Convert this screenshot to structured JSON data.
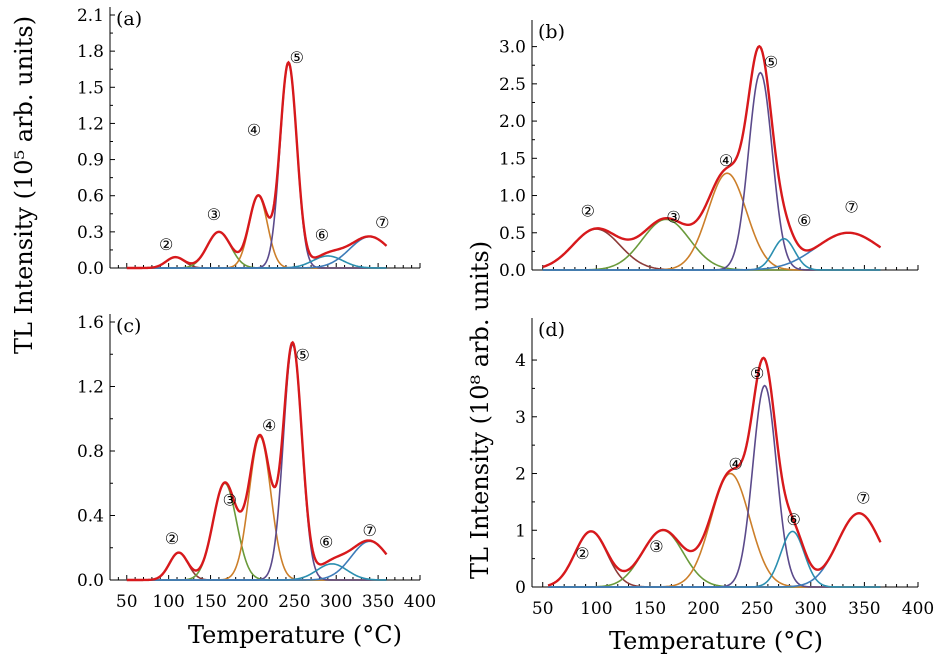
{
  "figure": {
    "x_axis_title": "Temperature (°C)",
    "y_axis_title_top": "TL Intensity (10⁵ arb. units)",
    "y_axis_title_bottom": "TL Intensity (10⁸ arb. units)",
    "colors": {
      "total": "#d7191c",
      "peak2": "#8c3b38",
      "peak3": "#6a9a3a",
      "peak4": "#cc7f2a",
      "peak5": "#5b4a8b",
      "peak6": "#2b8fb0",
      "peak7": "#3d7bb8"
    }
  },
  "chart_data": [
    {
      "id": "a",
      "type": "line",
      "panel_label": "(a)",
      "xlabel": "",
      "ylabel": "TL Intensity (10⁵ arb. units)",
      "xlim": [
        30,
        400
      ],
      "ylim": [
        0,
        2.1
      ],
      "x_ticks": [],
      "y_ticks": [
        "0.0",
        "0.3",
        "0.6",
        "0.9",
        "1.2",
        "1.5",
        "1.8",
        "2.1"
      ],
      "x_range": [
        50,
        360
      ],
      "peaks": [
        {
          "label": "②",
          "center": 108,
          "height": 0.09,
          "width": 11,
          "color_key": "peak2",
          "label_x": 97,
          "label_y": 0.2
        },
        {
          "label": "③",
          "center": 160,
          "height": 0.3,
          "width": 14,
          "color_key": "peak3",
          "label_x": 154,
          "label_y": 0.45
        },
        {
          "label": "④",
          "center": 207,
          "height": 0.6,
          "width": 11,
          "color_key": "peak4",
          "label_x": 202,
          "label_y": 1.15
        },
        {
          "label": "⑤",
          "center": 243,
          "height": 1.7,
          "width": 10,
          "color_key": "peak5",
          "label_x": 253,
          "label_y": 1.75
        },
        {
          "label": "⑥",
          "center": 290,
          "height": 0.1,
          "width": 18,
          "color_key": "peak6",
          "label_x": 283,
          "label_y": 0.28
        },
        {
          "label": "⑦",
          "center": 340,
          "height": 0.26,
          "width": 24,
          "color_key": "peak7",
          "label_x": 355,
          "label_y": 0.38
        }
      ]
    },
    {
      "id": "b",
      "type": "line",
      "panel_label": "(b)",
      "xlabel": "",
      "ylabel": "",
      "xlim": [
        40,
        400
      ],
      "ylim": [
        0,
        3.25
      ],
      "x_ticks": [],
      "y_ticks": [
        "0.0",
        "0.5",
        "1.0",
        "1.5",
        "2.0",
        "2.5",
        "3.0"
      ],
      "x_range": [
        50,
        365
      ],
      "peaks": [
        {
          "label": "②",
          "center": 100,
          "height": 0.55,
          "width": 22,
          "color_key": "peak2",
          "label_x": 92,
          "label_y": 0.8
        },
        {
          "label": "③",
          "center": 165,
          "height": 0.68,
          "width": 22,
          "color_key": "peak3",
          "label_x": 172,
          "label_y": 0.72
        },
        {
          "label": "④",
          "center": 222,
          "height": 1.3,
          "width": 18,
          "color_key": "peak4",
          "label_x": 221,
          "label_y": 1.48
        },
        {
          "label": "⑤",
          "center": 253,
          "height": 2.65,
          "width": 11,
          "color_key": "peak5",
          "label_x": 263,
          "label_y": 2.8
        },
        {
          "label": "⑥",
          "center": 275,
          "height": 0.42,
          "width": 10,
          "color_key": "peak6",
          "label_x": 294,
          "label_y": 0.67
        },
        {
          "label": "⑦",
          "center": 335,
          "height": 0.5,
          "width": 30,
          "color_key": "peak7",
          "label_x": 338,
          "label_y": 0.85
        }
      ]
    },
    {
      "id": "c",
      "type": "line",
      "panel_label": "(c)",
      "xlabel": "Temperature (°C)",
      "ylabel": "",
      "xlim": [
        30,
        400
      ],
      "ylim": [
        0,
        1.6
      ],
      "x_ticks": [
        "50",
        "100",
        "150",
        "200",
        "250",
        "300",
        "350",
        "400"
      ],
      "y_ticks": [
        "0.0",
        "0.4",
        "0.8",
        "1.2",
        "1.6"
      ],
      "x_range": [
        50,
        360
      ],
      "peaks": [
        {
          "label": "②",
          "center": 112,
          "height": 0.17,
          "width": 11,
          "color_key": "peak2",
          "label_x": 104,
          "label_y": 0.26
        },
        {
          "label": "③",
          "center": 167,
          "height": 0.6,
          "width": 14,
          "color_key": "peak3",
          "label_x": 173,
          "label_y": 0.5
        },
        {
          "label": "④",
          "center": 209,
          "height": 0.89,
          "width": 13,
          "color_key": "peak4",
          "label_x": 220,
          "label_y": 0.96
        },
        {
          "label": "⑤",
          "center": 248,
          "height": 1.46,
          "width": 11,
          "color_key": "peak5",
          "label_x": 260,
          "label_y": 1.4
        },
        {
          "label": "⑥",
          "center": 295,
          "height": 0.1,
          "width": 18,
          "color_key": "peak6",
          "label_x": 288,
          "label_y": 0.24
        },
        {
          "label": "⑦",
          "center": 340,
          "height": 0.24,
          "width": 22,
          "color_key": "peak7",
          "label_x": 340,
          "label_y": 0.31
        }
      ]
    },
    {
      "id": "d",
      "type": "line",
      "panel_label": "(d)",
      "xlabel": "Temperature (°C)",
      "ylabel": "TL Intensity (10⁸ arb. units)",
      "xlim": [
        40,
        400
      ],
      "ylim": [
        0,
        4.6
      ],
      "x_ticks": [
        "50",
        "100",
        "150",
        "200",
        "250",
        "300",
        "350",
        "400"
      ],
      "y_ticks": [
        "0",
        "1",
        "2",
        "3",
        "4"
      ],
      "x_range": [
        55,
        365
      ],
      "peaks": [
        {
          "label": "②",
          "center": 95,
          "height": 0.98,
          "width": 15,
          "color_key": "peak2",
          "label_x": 87,
          "label_y": 0.6
        },
        {
          "label": "③",
          "center": 162,
          "height": 1.0,
          "width": 19,
          "color_key": "peak3",
          "label_x": 156,
          "label_y": 0.72
        },
        {
          "label": "④",
          "center": 225,
          "height": 2.0,
          "width": 18,
          "color_key": "peak4",
          "label_x": 230,
          "label_y": 2.18
        },
        {
          "label": "⑤",
          "center": 257,
          "height": 3.55,
          "width": 11,
          "color_key": "peak5",
          "label_x": 250,
          "label_y": 3.77
        },
        {
          "label": "⑥",
          "center": 283,
          "height": 0.98,
          "width": 11,
          "color_key": "peak6",
          "label_x": 284,
          "label_y": 1.2
        },
        {
          "label": "⑦",
          "center": 345,
          "height": 1.3,
          "width": 20,
          "color_key": "peak7",
          "label_x": 349,
          "label_y": 1.58
        }
      ]
    }
  ]
}
